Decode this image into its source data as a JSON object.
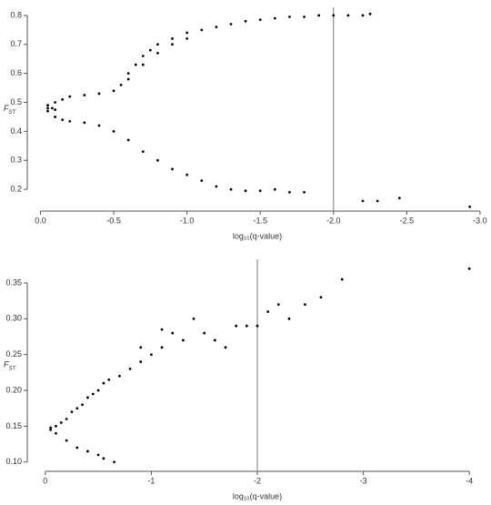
{
  "chart_data": [
    {
      "type": "scatter",
      "color": "#000000",
      "ylabel": "F",
      "ylabel_sub": "ST",
      "xlabel": "log₁₀(q-value)",
      "vline": -2,
      "xlim": [
        0.09,
        -3.05
      ],
      "ylim": [
        0.125,
        0.828
      ],
      "xticks": [
        {
          "value": 0,
          "label": "0.0"
        },
        -0.5,
        {
          "value": -1,
          "label": "-1.0"
        },
        -1.5,
        {
          "value": -2,
          "label": "-2.0"
        },
        -2.5,
        {
          "value": -3,
          "label": "-3.0"
        }
      ],
      "yticks": [
        0.2,
        0.3,
        0.4,
        0.5,
        0.6,
        0.7,
        0.8
      ],
      "x": [
        -0.05,
        -0.1,
        -0.15,
        -0.2,
        -0.3,
        -0.4,
        -0.5,
        -0.55,
        -0.6,
        -0.65,
        -0.7,
        -0.75,
        -0.8,
        -0.9,
        -1.0,
        -1.1,
        -1.2,
        -1.3,
        -1.4,
        -1.5,
        -1.6,
        -1.7,
        -1.8,
        -1.9,
        -2.0,
        -2.1,
        -2.2,
        -2.25,
        -0.6,
        -0.7,
        -0.8,
        -0.9,
        -1.0,
        -0.05,
        -0.1,
        -0.15,
        -0.2,
        -0.3,
        -0.4,
        -0.5,
        -0.6,
        -0.7,
        -0.8,
        -0.9,
        -1.0,
        -1.1,
        -1.2,
        -1.3,
        -1.4,
        -1.5,
        -1.6,
        -1.7,
        -1.8,
        -2.2,
        -2.3,
        -2.45,
        -2.93,
        -0.05,
        -0.08,
        -0.1
      ],
      "y": [
        0.49,
        0.5,
        0.51,
        0.52,
        0.525,
        0.53,
        0.54,
        0.56,
        0.6,
        0.63,
        0.66,
        0.68,
        0.7,
        0.72,
        0.74,
        0.75,
        0.76,
        0.77,
        0.78,
        0.785,
        0.79,
        0.795,
        0.795,
        0.8,
        0.8,
        0.8,
        0.8,
        0.805,
        0.58,
        0.63,
        0.67,
        0.7,
        0.72,
        0.47,
        0.45,
        0.44,
        0.435,
        0.43,
        0.42,
        0.4,
        0.37,
        0.33,
        0.3,
        0.27,
        0.25,
        0.23,
        0.21,
        0.2,
        0.195,
        0.195,
        0.2,
        0.19,
        0.19,
        0.16,
        0.16,
        0.17,
        0.14,
        0.48,
        0.48,
        0.475
      ]
    },
    {
      "type": "scatter",
      "color": "#000000",
      "ylabel": "F",
      "ylabel_sub": "ST",
      "xlabel": "log₁₀(q-value)",
      "vline": -2,
      "xlim": [
        0.17,
        -4.17
      ],
      "ylim": [
        0.087,
        0.383
      ],
      "xticks": [
        0,
        -1,
        -2,
        -3,
        -4
      ],
      "yticks": [
        {
          "value": 0.1,
          "label": "0.10"
        },
        0.15,
        {
          "value": 0.2,
          "label": "0.20"
        },
        0.25,
        {
          "value": 0.3,
          "label": "0.30"
        },
        0.35
      ],
      "x": [
        -0.05,
        -0.1,
        -0.2,
        -0.3,
        -0.4,
        -0.5,
        -0.55,
        -0.65,
        -0.05,
        -0.1,
        -0.15,
        -0.2,
        -0.25,
        -0.3,
        -0.35,
        -0.4,
        -0.45,
        -0.5,
        -0.55,
        -0.6,
        -0.7,
        -0.8,
        -0.9,
        -1.0,
        -1.1,
        -1.2,
        -1.3,
        -1.4,
        -1.5,
        -1.6,
        -1.8,
        -1.9,
        -2.0,
        -2.1,
        -2.2,
        -2.3,
        -2.45,
        -2.6,
        -2.8,
        -4.0,
        -0.9,
        -1.1,
        -1.7
      ],
      "y": [
        0.145,
        0.14,
        0.13,
        0.12,
        0.115,
        0.11,
        0.105,
        0.1,
        0.148,
        0.15,
        0.155,
        0.16,
        0.17,
        0.175,
        0.18,
        0.19,
        0.195,
        0.2,
        0.21,
        0.215,
        0.22,
        0.23,
        0.24,
        0.25,
        0.26,
        0.28,
        0.27,
        0.3,
        0.28,
        0.27,
        0.29,
        0.29,
        0.29,
        0.31,
        0.32,
        0.3,
        0.32,
        0.33,
        0.355,
        0.37,
        0.26,
        0.285,
        0.26
      ]
    }
  ]
}
